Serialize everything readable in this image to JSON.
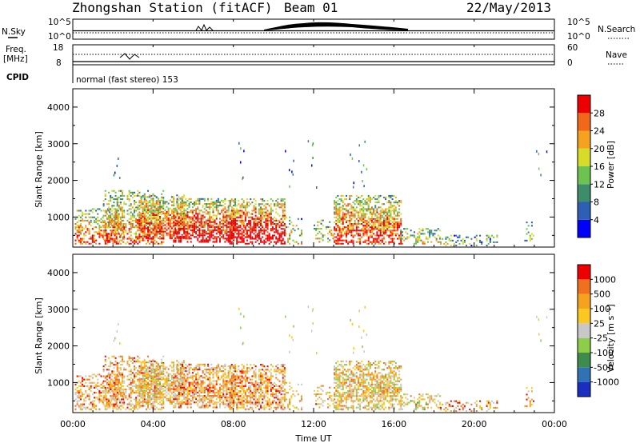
{
  "header": {
    "station": "Zhongshan Station (fitACF)",
    "beam": "Beam 01",
    "date": "22/May/2013"
  },
  "params": {
    "nsky_label": "N.Sky",
    "nsearch_label": "N.Search",
    "nsky_ticks": [
      "10^5",
      "10^0"
    ],
    "nsearch_ticks": [
      "10^5",
      "10^0"
    ],
    "freq_label": "Freq.",
    "freq_unit": "[MHz]",
    "freq_ticks": [
      "18",
      "8"
    ],
    "nave_label": "Nave",
    "nave_ticks": [
      "60",
      "0"
    ],
    "cpid_label": "CPID",
    "cpid_value": "normal (fast stereo) 153"
  },
  "chart_data": [
    {
      "type": "heatmap",
      "name": "power",
      "ylabel": "Slant Range [km]",
      "xlabel": "",
      "ylim": [
        180,
        4500
      ],
      "yticks": [
        "1000",
        "2000",
        "3000",
        "4000"
      ],
      "colorbar_label": "Power [dB]",
      "colorbar_ticks": [
        "4",
        "8",
        "12",
        "16",
        "20",
        "24",
        "28"
      ],
      "colors": [
        "#0000ff",
        "#2d5fb4",
        "#3d8c6a",
        "#6ec350",
        "#d8dc28",
        "#f5a21e",
        "#f06818",
        "#ee0000"
      ]
    },
    {
      "type": "heatmap",
      "name": "velocity",
      "ylabel": "Slant Range [km]",
      "xlabel": "Time UT",
      "ylim": [
        180,
        4500
      ],
      "yticks": [
        "1000",
        "2000",
        "3000",
        "4000"
      ],
      "xticks": [
        "00:00",
        "04:00",
        "08:00",
        "12:00",
        "16:00",
        "20:00",
        "00:00"
      ],
      "colorbar_label": "Velocity [m s⁻¹]",
      "colorbar_ticks": [
        "1000",
        "500",
        "100",
        "25",
        "-25",
        "-100",
        "-500",
        "-1000"
      ],
      "colors": [
        "#1a2fc2",
        "#2f73b4",
        "#3d8c4e",
        "#8ccd4a",
        "#c8c8c8",
        "#fac820",
        "#f5a21e",
        "#f07020",
        "#ee0000"
      ]
    }
  ]
}
